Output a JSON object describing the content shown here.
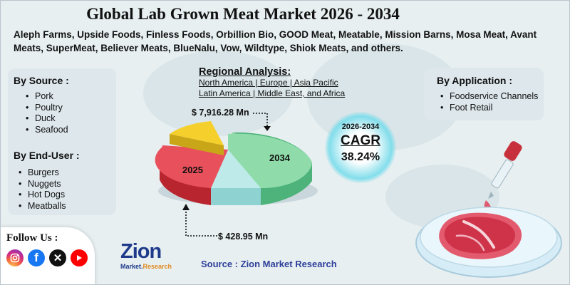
{
  "title": "Global Lab Grown Meat Market 2026 - 2034",
  "companies": "Aleph Farms, Upside Foods, Finless Foods, Orbillion Bio, GOOD Meat, Meatable, Mission Barns, Mosa Meat, Avant Meats, SuperMeat, Believer Meats, BlueNalu, Vow, Wildtype, Shiok Meats, and others.",
  "by_source": {
    "heading": "By Source :",
    "items": [
      "Pork",
      "Poultry",
      "Duck",
      "Seafood"
    ]
  },
  "by_end_user": {
    "heading": "By End-User :",
    "items": [
      "Burgers",
      "Nuggets",
      "Hot Dogs",
      "Meatballs"
    ]
  },
  "by_application": {
    "heading": "By Application :",
    "items": [
      "Foodservice Channels",
      "Foot Retail"
    ]
  },
  "regional": {
    "title": "Regional Analysis:",
    "line1": "North America | Europe | Asia Pacific",
    "line2": "Latin America | Middle East, and Africa"
  },
  "pie": {
    "label_2034": "2034",
    "label_2025": "2025",
    "value_2034": "$ 7,916.28 Mn",
    "value_2025": "$  428.95 Mn",
    "colors": {
      "green": "#8fdcaa",
      "red": "#e8505b",
      "yellow": "#f5d02c",
      "cyan": "#bfeaea"
    }
  },
  "cagr": {
    "years": "2026-2034",
    "label": "CAGR",
    "value": "38.24%"
  },
  "follow": {
    "label": "Follow Us :",
    "icons": [
      "instagram-icon",
      "facebook-icon",
      "x-icon",
      "youtube-icon"
    ]
  },
  "logo": {
    "word": "Zion",
    "sub_left": "Market.",
    "sub_right": "Research"
  },
  "source": "Source : Zion Market Research"
}
